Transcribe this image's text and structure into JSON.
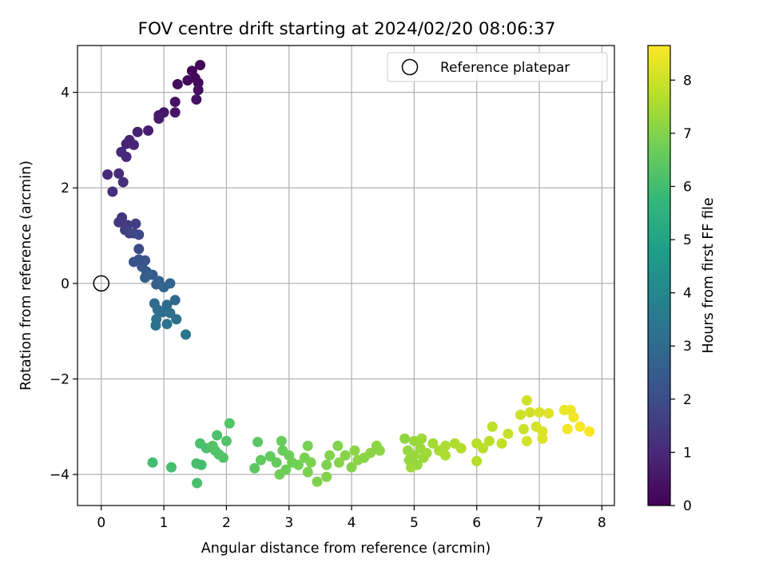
{
  "chart_data": {
    "type": "scatter",
    "title": "FOV centre drift starting at 2024/02/20 08:06:37",
    "xlabel": "Angular distance from reference (arcmin)",
    "ylabel": "Rotation from reference (arcmin)",
    "xlim": [
      -0.38,
      8.2
    ],
    "ylim": [
      -4.65,
      4.98
    ],
    "x_ticks": [
      0,
      1,
      2,
      3,
      4,
      5,
      6,
      7,
      8
    ],
    "y_ticks": [
      -4,
      -2,
      0,
      2,
      4
    ],
    "x_tick_labels": [
      "0",
      "1",
      "2",
      "3",
      "4",
      "5",
      "6",
      "7",
      "8"
    ],
    "y_tick_labels": [
      "−4",
      "−2",
      "0",
      "2",
      "4"
    ],
    "grid": true,
    "legend": {
      "placement": "top-right",
      "entries": [
        {
          "label": "Reference platepar",
          "marker": "open-circle"
        }
      ]
    },
    "reference_point": {
      "x": 0,
      "y": 0
    },
    "colorbar": {
      "label": "Hours from first FF file",
      "colormap": "viridis",
      "range": [
        0,
        8.65
      ],
      "ticks": [
        0,
        1,
        2,
        3,
        4,
        5,
        6,
        7,
        8
      ],
      "tick_labels": [
        "0",
        "1",
        "2",
        "3",
        "4",
        "5",
        "6",
        "7",
        "8"
      ],
      "colormap_stops": [
        "#440154",
        "#482878",
        "#3e4a89",
        "#31688e",
        "#26828e",
        "#1f9e89",
        "#35b779",
        "#6ece58",
        "#b5de2b",
        "#fde725"
      ]
    },
    "points": [
      {
        "x": 1.58,
        "y": 4.57,
        "t": 0.05
      },
      {
        "x": 1.45,
        "y": 4.45,
        "t": 0.1
      },
      {
        "x": 1.5,
        "y": 4.3,
        "t": 0.15
      },
      {
        "x": 1.38,
        "y": 4.25,
        "t": 0.2
      },
      {
        "x": 1.55,
        "y": 4.2,
        "t": 0.25
      },
      {
        "x": 1.22,
        "y": 4.17,
        "t": 0.3
      },
      {
        "x": 1.55,
        "y": 4.05,
        "t": 0.35
      },
      {
        "x": 1.52,
        "y": 3.85,
        "t": 0.4
      },
      {
        "x": 1.18,
        "y": 3.8,
        "t": 0.45
      },
      {
        "x": 1.18,
        "y": 3.58,
        "t": 0.5
      },
      {
        "x": 1.0,
        "y": 3.58,
        "t": 0.55
      },
      {
        "x": 0.92,
        "y": 3.52,
        "t": 0.6
      },
      {
        "x": 0.92,
        "y": 3.45,
        "t": 0.65
      },
      {
        "x": 0.75,
        "y": 3.2,
        "t": 0.7
      },
      {
        "x": 0.58,
        "y": 3.17,
        "t": 0.75
      },
      {
        "x": 0.45,
        "y": 3.0,
        "t": 0.8
      },
      {
        "x": 0.4,
        "y": 2.92,
        "t": 0.85
      },
      {
        "x": 0.52,
        "y": 2.9,
        "t": 0.9
      },
      {
        "x": 0.32,
        "y": 2.75,
        "t": 0.95
      },
      {
        "x": 0.4,
        "y": 2.65,
        "t": 1.0
      },
      {
        "x": 0.1,
        "y": 2.28,
        "t": 1.05
      },
      {
        "x": 0.28,
        "y": 2.3,
        "t": 1.1
      },
      {
        "x": 0.35,
        "y": 2.12,
        "t": 1.15
      },
      {
        "x": 0.18,
        "y": 1.92,
        "t": 1.2
      },
      {
        "x": 0.33,
        "y": 1.38,
        "t": 1.3
      },
      {
        "x": 0.28,
        "y": 1.28,
        "t": 1.4
      },
      {
        "x": 0.42,
        "y": 1.22,
        "t": 1.5
      },
      {
        "x": 0.55,
        "y": 1.25,
        "t": 1.55
      },
      {
        "x": 0.38,
        "y": 1.12,
        "t": 1.6
      },
      {
        "x": 0.45,
        "y": 1.05,
        "t": 1.7
      },
      {
        "x": 0.52,
        "y": 1.05,
        "t": 1.8
      },
      {
        "x": 0.6,
        "y": 1.02,
        "t": 1.9
      },
      {
        "x": 0.6,
        "y": 0.72,
        "t": 2.0
      },
      {
        "x": 0.52,
        "y": 0.45,
        "t": 2.1
      },
      {
        "x": 0.6,
        "y": 0.5,
        "t": 2.15
      },
      {
        "x": 0.7,
        "y": 0.48,
        "t": 2.2
      },
      {
        "x": 0.65,
        "y": 0.35,
        "t": 2.3
      },
      {
        "x": 0.72,
        "y": 0.25,
        "t": 2.4
      },
      {
        "x": 0.82,
        "y": 0.18,
        "t": 2.5
      },
      {
        "x": 0.7,
        "y": 0.12,
        "t": 2.55
      },
      {
        "x": 0.92,
        "y": 0.05,
        "t": 2.6
      },
      {
        "x": 0.88,
        "y": -0.02,
        "t": 2.7
      },
      {
        "x": 1.1,
        "y": 0.0,
        "t": 2.75
      },
      {
        "x": 1.0,
        "y": -0.08,
        "t": 2.8
      },
      {
        "x": 1.18,
        "y": -0.35,
        "t": 2.9
      },
      {
        "x": 0.85,
        "y": -0.42,
        "t": 2.95
      },
      {
        "x": 1.05,
        "y": -0.45,
        "t": 3.0
      },
      {
        "x": 0.9,
        "y": -0.55,
        "t": 3.05
      },
      {
        "x": 0.98,
        "y": -0.6,
        "t": 3.1
      },
      {
        "x": 1.1,
        "y": -0.62,
        "t": 3.15
      },
      {
        "x": 0.88,
        "y": -0.75,
        "t": 3.2
      },
      {
        "x": 1.2,
        "y": -0.75,
        "t": 3.2
      },
      {
        "x": 1.05,
        "y": -0.85,
        "t": 3.25
      },
      {
        "x": 0.87,
        "y": -0.88,
        "t": 3.3
      },
      {
        "x": 1.35,
        "y": -1.07,
        "t": 3.35
      },
      {
        "x": 0.82,
        "y": -3.75,
        "t": 6.0
      },
      {
        "x": 1.12,
        "y": -3.85,
        "t": 6.05
      },
      {
        "x": 1.52,
        "y": -3.77,
        "t": 6.1
      },
      {
        "x": 1.6,
        "y": -3.8,
        "t": 6.05
      },
      {
        "x": 1.53,
        "y": -4.18,
        "t": 6.1
      },
      {
        "x": 1.58,
        "y": -3.35,
        "t": 6.15
      },
      {
        "x": 1.68,
        "y": -3.45,
        "t": 6.15
      },
      {
        "x": 1.82,
        "y": -3.5,
        "t": 6.2
      },
      {
        "x": 1.85,
        "y": -3.18,
        "t": 6.2
      },
      {
        "x": 1.88,
        "y": -3.58,
        "t": 6.25
      },
      {
        "x": 2.0,
        "y": -3.3,
        "t": 6.25
      },
      {
        "x": 1.95,
        "y": -3.65,
        "t": 6.25
      },
      {
        "x": 2.05,
        "y": -2.93,
        "t": 6.3
      },
      {
        "x": 1.78,
        "y": -3.4,
        "t": 6.3
      },
      {
        "x": 2.5,
        "y": -3.32,
        "t": 6.4
      },
      {
        "x": 2.45,
        "y": -3.87,
        "t": 6.45
      },
      {
        "x": 2.55,
        "y": -3.7,
        "t": 6.5
      },
      {
        "x": 2.7,
        "y": -3.62,
        "t": 6.55
      },
      {
        "x": 2.8,
        "y": -3.75,
        "t": 6.6
      },
      {
        "x": 2.9,
        "y": -3.5,
        "t": 6.6
      },
      {
        "x": 2.88,
        "y": -3.3,
        "t": 6.65
      },
      {
        "x": 2.95,
        "y": -3.9,
        "t": 6.7
      },
      {
        "x": 3.0,
        "y": -3.6,
        "t": 6.7
      },
      {
        "x": 3.05,
        "y": -3.75,
        "t": 6.75
      },
      {
        "x": 2.85,
        "y": -4.0,
        "t": 6.75
      },
      {
        "x": 3.15,
        "y": -3.8,
        "t": 6.8
      },
      {
        "x": 3.25,
        "y": -3.65,
        "t": 6.85
      },
      {
        "x": 3.3,
        "y": -3.4,
        "t": 6.85
      },
      {
        "x": 3.35,
        "y": -3.75,
        "t": 6.9
      },
      {
        "x": 3.3,
        "y": -3.95,
        "t": 6.9
      },
      {
        "x": 3.45,
        "y": -4.15,
        "t": 6.95
      },
      {
        "x": 3.6,
        "y": -3.8,
        "t": 6.95
      },
      {
        "x": 3.65,
        "y": -3.6,
        "t": 7.0
      },
      {
        "x": 3.6,
        "y": -4.05,
        "t": 7.0
      },
      {
        "x": 3.78,
        "y": -3.4,
        "t": 7.0
      },
      {
        "x": 3.8,
        "y": -3.75,
        "t": 7.05
      },
      {
        "x": 3.9,
        "y": -3.6,
        "t": 7.05
      },
      {
        "x": 4.0,
        "y": -3.85,
        "t": 7.05
      },
      {
        "x": 4.05,
        "y": -3.5,
        "t": 7.1
      },
      {
        "x": 4.1,
        "y": -3.7,
        "t": 7.1
      },
      {
        "x": 4.2,
        "y": -3.65,
        "t": 7.1
      },
      {
        "x": 4.3,
        "y": -3.55,
        "t": 7.15
      },
      {
        "x": 4.4,
        "y": -3.4,
        "t": 7.15
      },
      {
        "x": 4.45,
        "y": -3.5,
        "t": 7.15
      },
      {
        "x": 4.85,
        "y": -3.25,
        "t": 7.2
      },
      {
        "x": 4.9,
        "y": -3.5,
        "t": 7.25
      },
      {
        "x": 4.92,
        "y": -3.7,
        "t": 7.25
      },
      {
        "x": 5.0,
        "y": -3.3,
        "t": 7.3
      },
      {
        "x": 5.0,
        "y": -3.6,
        "t": 7.3
      },
      {
        "x": 5.05,
        "y": -3.8,
        "t": 7.3
      },
      {
        "x": 5.1,
        "y": -3.45,
        "t": 7.35
      },
      {
        "x": 5.12,
        "y": -3.25,
        "t": 7.35
      },
      {
        "x": 5.15,
        "y": -3.65,
        "t": 7.35
      },
      {
        "x": 5.2,
        "y": -3.55,
        "t": 7.4
      },
      {
        "x": 4.95,
        "y": -3.85,
        "t": 7.4
      },
      {
        "x": 5.3,
        "y": -3.35,
        "t": 7.45
      },
      {
        "x": 5.4,
        "y": -3.5,
        "t": 7.5
      },
      {
        "x": 5.5,
        "y": -3.6,
        "t": 7.55
      },
      {
        "x": 5.5,
        "y": -3.4,
        "t": 7.55
      },
      {
        "x": 5.65,
        "y": -3.35,
        "t": 7.6
      },
      {
        "x": 5.75,
        "y": -3.45,
        "t": 7.65
      },
      {
        "x": 6.0,
        "y": -3.35,
        "t": 7.7
      },
      {
        "x": 6.0,
        "y": -3.72,
        "t": 7.7
      },
      {
        "x": 6.1,
        "y": -3.45,
        "t": 7.75
      },
      {
        "x": 6.25,
        "y": -3.0,
        "t": 7.8
      },
      {
        "x": 6.2,
        "y": -3.3,
        "t": 7.8
      },
      {
        "x": 6.4,
        "y": -3.35,
        "t": 7.85
      },
      {
        "x": 6.5,
        "y": -3.15,
        "t": 7.9
      },
      {
        "x": 6.7,
        "y": -2.75,
        "t": 8.0
      },
      {
        "x": 6.75,
        "y": -3.05,
        "t": 8.0
      },
      {
        "x": 6.8,
        "y": -2.45,
        "t": 8.05
      },
      {
        "x": 6.85,
        "y": -2.7,
        "t": 8.05
      },
      {
        "x": 6.8,
        "y": -3.3,
        "t": 8.1
      },
      {
        "x": 6.95,
        "y": -3.0,
        "t": 8.1
      },
      {
        "x": 7.0,
        "y": -2.7,
        "t": 8.15
      },
      {
        "x": 7.05,
        "y": -3.1,
        "t": 8.2
      },
      {
        "x": 7.05,
        "y": -3.25,
        "t": 8.2
      },
      {
        "x": 7.15,
        "y": -2.72,
        "t": 8.25
      },
      {
        "x": 7.4,
        "y": -2.65,
        "t": 8.4
      },
      {
        "x": 7.5,
        "y": -2.65,
        "t": 8.45
      },
      {
        "x": 7.45,
        "y": -3.05,
        "t": 8.5
      },
      {
        "x": 7.55,
        "y": -2.8,
        "t": 8.5
      },
      {
        "x": 7.65,
        "y": -3.0,
        "t": 8.55
      },
      {
        "x": 7.8,
        "y": -3.1,
        "t": 8.6
      }
    ]
  }
}
